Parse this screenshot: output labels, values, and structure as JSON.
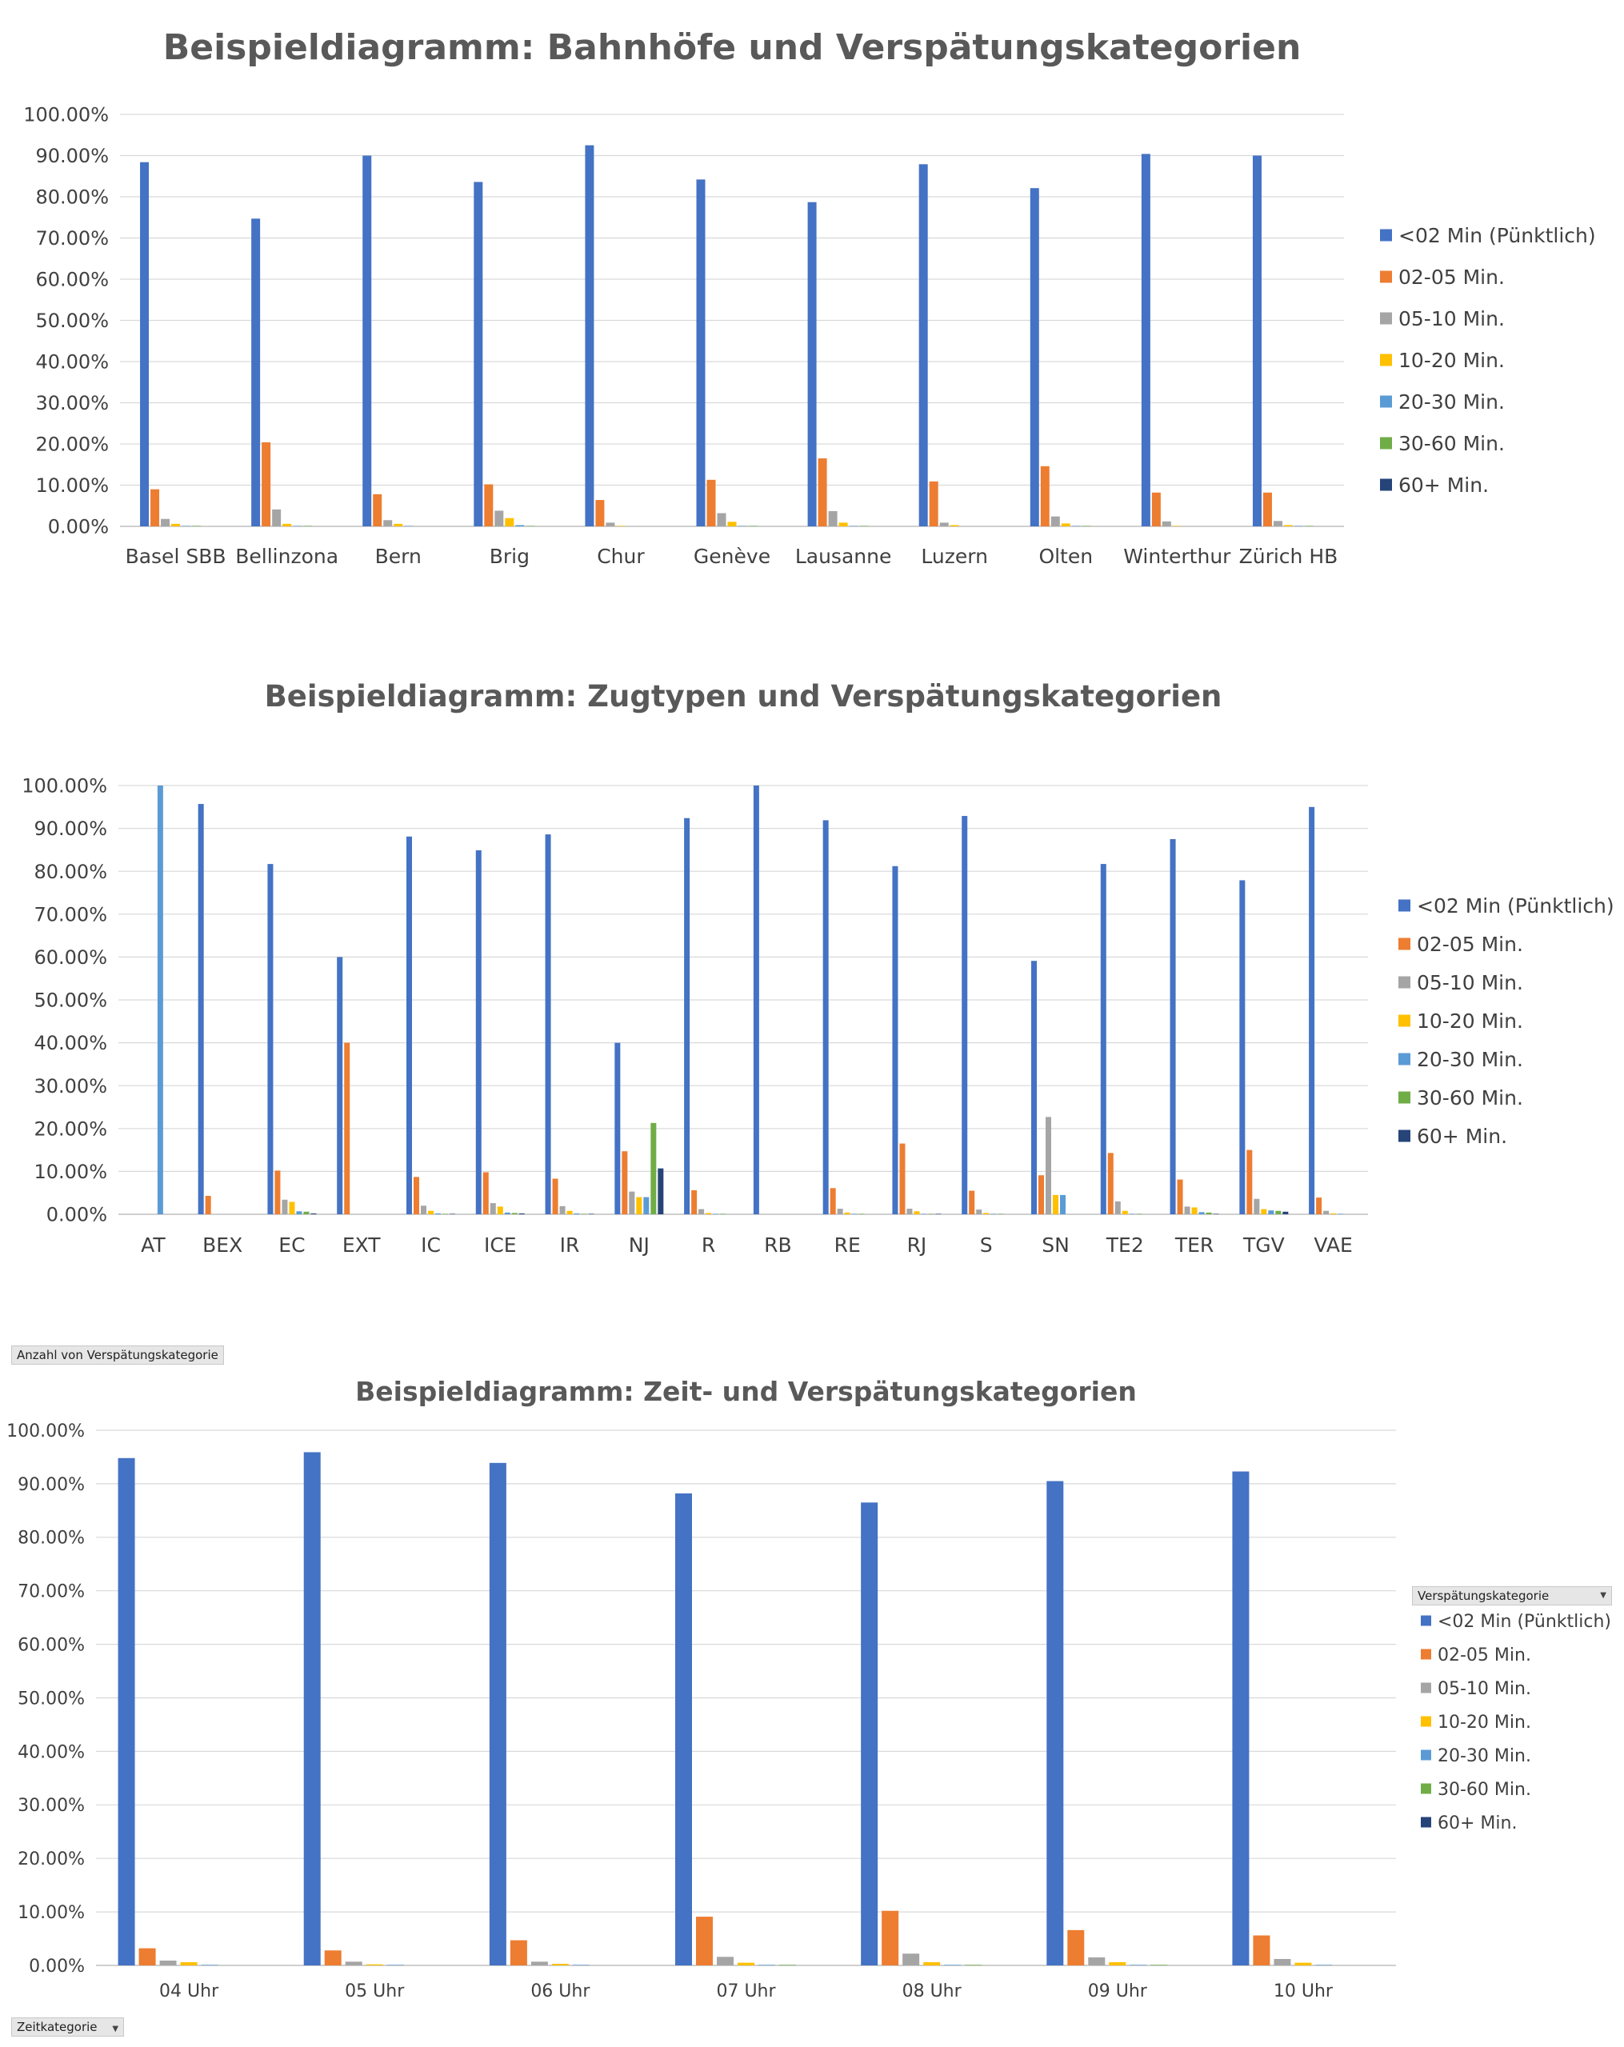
{
  "series_colors": [
    "#4472C4",
    "#ED7D31",
    "#A5A5A5",
    "#FFC000",
    "#5B9BD5",
    "#70AD47",
    "#264478"
  ],
  "pivot": {
    "values_button": "Anzahl von Verspätungskategorie",
    "legend_button": "Verspätungskategorie",
    "axis_button": "Zeitkategorie"
  },
  "chart_data": [
    {
      "type": "bar",
      "title": "Beispieldiagramm: Bahnhöfe und Verspätungskategorien",
      "xlabel": "",
      "ylabel": "",
      "ylim": [
        0,
        100
      ],
      "yticks": [
        "0.00%",
        "10.00%",
        "20.00%",
        "30.00%",
        "40.00%",
        "50.00%",
        "60.00%",
        "70.00%",
        "80.00%",
        "90.00%",
        "100.00%"
      ],
      "grid": true,
      "legend_position": "right",
      "categories": [
        "Basel SBB",
        "Bellinzona",
        "Bern",
        "Brig",
        "Chur",
        "Genève",
        "Lausanne",
        "Luzern",
        "Olten",
        "Winterthur",
        "Zürich HB"
      ],
      "series": [
        {
          "name": "<02 Min (Pünktlich)",
          "values": [
            88.4,
            74.7,
            90.0,
            83.6,
            92.5,
            84.2,
            78.7,
            87.9,
            82.1,
            90.4,
            90.0
          ]
        },
        {
          "name": "02-05 Min.",
          "values": [
            9.0,
            20.4,
            7.8,
            10.2,
            6.4,
            11.3,
            16.5,
            10.9,
            14.6,
            8.2,
            8.2
          ]
        },
        {
          "name": "05-10 Min.",
          "values": [
            1.8,
            4.1,
            1.5,
            3.8,
            0.9,
            3.2,
            3.7,
            0.9,
            2.4,
            1.2,
            1.3
          ]
        },
        {
          "name": "10-20 Min.",
          "values": [
            0.6,
            0.6,
            0.6,
            2.0,
            0.1,
            1.1,
            0.9,
            0.3,
            0.7,
            0.1,
            0.3
          ]
        },
        {
          "name": "20-30 Min.",
          "values": [
            0.1,
            0.1,
            0.1,
            0.3,
            0.0,
            0.1,
            0.1,
            0.0,
            0.1,
            0.0,
            0.1
          ]
        },
        {
          "name": "30-60 Min.",
          "values": [
            0.1,
            0.1,
            0.0,
            0.1,
            0.0,
            0.1,
            0.1,
            0.0,
            0.1,
            0.0,
            0.1
          ]
        },
        {
          "name": "60+ Min.",
          "values": [
            0.0,
            0.0,
            0.0,
            0.0,
            0.0,
            0.0,
            0.0,
            0.0,
            0.0,
            0.0,
            0.0
          ]
        }
      ]
    },
    {
      "type": "bar",
      "title": "Beispieldiagramm: Zugtypen und Verspätungskategorien",
      "xlabel": "",
      "ylabel": "",
      "ylim": [
        0,
        100
      ],
      "yticks": [
        "0.00%",
        "10.00%",
        "20.00%",
        "30.00%",
        "40.00%",
        "50.00%",
        "60.00%",
        "70.00%",
        "80.00%",
        "90.00%",
        "100.00%"
      ],
      "grid": true,
      "legend_position": "right",
      "categories": [
        "AT",
        "BEX",
        "EC",
        "EXT",
        "IC",
        "ICE",
        "IR",
        "NJ",
        "R",
        "RB",
        "RE",
        "RJ",
        "S",
        "SN",
        "TE2",
        "TER",
        "TGV",
        "VAE"
      ],
      "series": [
        {
          "name": "<02 Min (Pünktlich)",
          "values": [
            0,
            95.7,
            81.7,
            60.0,
            88.1,
            84.9,
            88.6,
            40.0,
            92.4,
            100.0,
            91.9,
            81.2,
            92.9,
            59.1,
            81.7,
            87.5,
            77.9,
            95.0
          ]
        },
        {
          "name": "02-05 Min.",
          "values": [
            0,
            4.3,
            10.2,
            40.0,
            8.7,
            9.8,
            8.3,
            14.7,
            5.6,
            0,
            6.1,
            16.5,
            5.5,
            9.1,
            14.3,
            8.1,
            15.0,
            3.9
          ]
        },
        {
          "name": "05-10 Min.",
          "values": [
            0,
            0,
            3.4,
            0,
            2.0,
            2.6,
            1.9,
            5.3,
            1.2,
            0,
            1.3,
            1.3,
            1.1,
            22.7,
            3.0,
            1.8,
            3.6,
            0.8
          ]
        },
        {
          "name": "10-20 Min.",
          "values": [
            0,
            0,
            2.9,
            0,
            0.8,
            1.8,
            0.8,
            4.0,
            0.3,
            0,
            0.4,
            0.7,
            0.3,
            4.5,
            0.8,
            1.6,
            1.2,
            0.2
          ]
        },
        {
          "name": "20-30 Min.",
          "values": [
            100.0,
            0,
            0.7,
            0,
            0.2,
            0.4,
            0.2,
            4.0,
            0.1,
            0,
            0.1,
            0.1,
            0.1,
            4.5,
            0.1,
            0.5,
            0.9,
            0.1
          ]
        },
        {
          "name": "30-60 Min.",
          "values": [
            0,
            0,
            0.6,
            0,
            0.1,
            0.3,
            0.1,
            21.3,
            0.1,
            0,
            0.1,
            0.1,
            0.1,
            0,
            0.1,
            0.4,
            0.8,
            0
          ]
        },
        {
          "name": "60+ Min.",
          "values": [
            0,
            0,
            0.2,
            0,
            0.1,
            0.2,
            0.1,
            10.7,
            0.0,
            0,
            0.0,
            0.1,
            0.0,
            0,
            0.0,
            0.1,
            0.6,
            0
          ]
        }
      ]
    },
    {
      "type": "bar",
      "title": "Beispieldiagramm: Zeit- und Verspätungskategorien",
      "xlabel": "",
      "ylabel": "",
      "ylim": [
        0,
        100
      ],
      "yticks": [
        "0.00%",
        "10.00%",
        "20.00%",
        "30.00%",
        "40.00%",
        "50.00%",
        "60.00%",
        "70.00%",
        "80.00%",
        "90.00%",
        "100.00%"
      ],
      "grid": true,
      "legend_position": "right",
      "categories": [
        "04 Uhr",
        "05 Uhr",
        "06 Uhr",
        "07 Uhr",
        "08 Uhr",
        "09 Uhr",
        "10 Uhr"
      ],
      "series": [
        {
          "name": "<02 Min (Pünktlich)",
          "values": [
            94.8,
            95.9,
            93.9,
            88.2,
            86.5,
            90.5,
            92.3
          ]
        },
        {
          "name": "02-05 Min.",
          "values": [
            3.2,
            2.8,
            4.7,
            9.1,
            10.2,
            6.6,
            5.6
          ]
        },
        {
          "name": "05-10 Min.",
          "values": [
            0.9,
            0.7,
            0.7,
            1.6,
            2.2,
            1.5,
            1.2
          ]
        },
        {
          "name": "10-20 Min.",
          "values": [
            0.6,
            0.2,
            0.3,
            0.5,
            0.6,
            0.6,
            0.5
          ]
        },
        {
          "name": "20-30 Min.",
          "values": [
            0.1,
            0.1,
            0.1,
            0.1,
            0.1,
            0.1,
            0.1
          ]
        },
        {
          "name": "30-60 Min.",
          "values": [
            0.0,
            0.0,
            0.0,
            0.1,
            0.1,
            0.1,
            0.0
          ]
        },
        {
          "name": "60+ Min.",
          "values": [
            0.0,
            0.0,
            0.0,
            0.0,
            0.0,
            0.0,
            0.0
          ]
        }
      ]
    }
  ]
}
